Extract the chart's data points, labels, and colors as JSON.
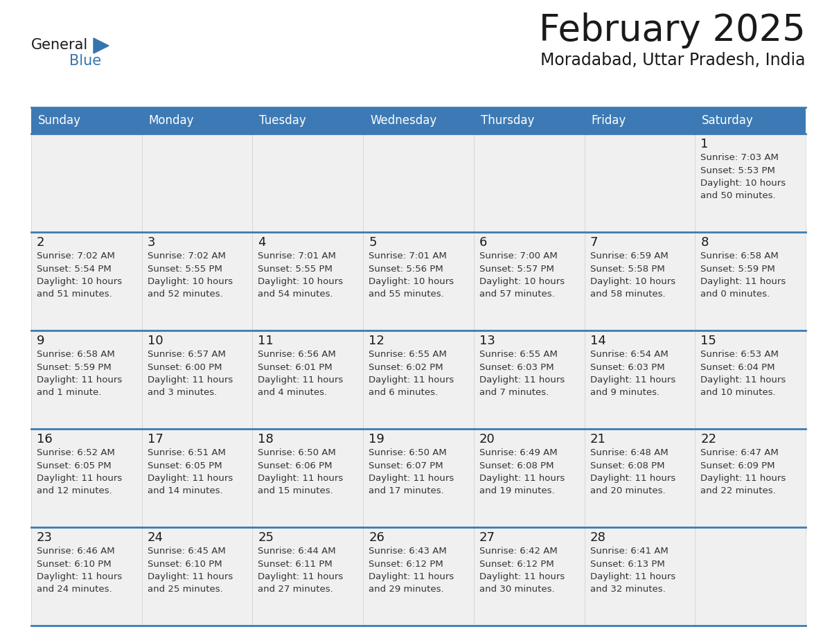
{
  "title": "February 2025",
  "subtitle": "Moradabad, Uttar Pradesh, India",
  "header_color": "#3d7ab5",
  "header_text_color": "#ffffff",
  "cell_bg_light": "#f0f0f0",
  "cell_bg_white": "#ffffff",
  "day_number_color": "#222222",
  "text_color": "#333333",
  "line_color": "#3d7ab5",
  "days_of_week": [
    "Sunday",
    "Monday",
    "Tuesday",
    "Wednesday",
    "Thursday",
    "Friday",
    "Saturday"
  ],
  "weeks": [
    [
      {
        "day": 0,
        "info": ""
      },
      {
        "day": 0,
        "info": ""
      },
      {
        "day": 0,
        "info": ""
      },
      {
        "day": 0,
        "info": ""
      },
      {
        "day": 0,
        "info": ""
      },
      {
        "day": 0,
        "info": ""
      },
      {
        "day": 1,
        "info": "Sunrise: 7:03 AM\nSunset: 5:53 PM\nDaylight: 10 hours\nand 50 minutes."
      }
    ],
    [
      {
        "day": 2,
        "info": "Sunrise: 7:02 AM\nSunset: 5:54 PM\nDaylight: 10 hours\nand 51 minutes."
      },
      {
        "day": 3,
        "info": "Sunrise: 7:02 AM\nSunset: 5:55 PM\nDaylight: 10 hours\nand 52 minutes."
      },
      {
        "day": 4,
        "info": "Sunrise: 7:01 AM\nSunset: 5:55 PM\nDaylight: 10 hours\nand 54 minutes."
      },
      {
        "day": 5,
        "info": "Sunrise: 7:01 AM\nSunset: 5:56 PM\nDaylight: 10 hours\nand 55 minutes."
      },
      {
        "day": 6,
        "info": "Sunrise: 7:00 AM\nSunset: 5:57 PM\nDaylight: 10 hours\nand 57 minutes."
      },
      {
        "day": 7,
        "info": "Sunrise: 6:59 AM\nSunset: 5:58 PM\nDaylight: 10 hours\nand 58 minutes."
      },
      {
        "day": 8,
        "info": "Sunrise: 6:58 AM\nSunset: 5:59 PM\nDaylight: 11 hours\nand 0 minutes."
      }
    ],
    [
      {
        "day": 9,
        "info": "Sunrise: 6:58 AM\nSunset: 5:59 PM\nDaylight: 11 hours\nand 1 minute."
      },
      {
        "day": 10,
        "info": "Sunrise: 6:57 AM\nSunset: 6:00 PM\nDaylight: 11 hours\nand 3 minutes."
      },
      {
        "day": 11,
        "info": "Sunrise: 6:56 AM\nSunset: 6:01 PM\nDaylight: 11 hours\nand 4 minutes."
      },
      {
        "day": 12,
        "info": "Sunrise: 6:55 AM\nSunset: 6:02 PM\nDaylight: 11 hours\nand 6 minutes."
      },
      {
        "day": 13,
        "info": "Sunrise: 6:55 AM\nSunset: 6:03 PM\nDaylight: 11 hours\nand 7 minutes."
      },
      {
        "day": 14,
        "info": "Sunrise: 6:54 AM\nSunset: 6:03 PM\nDaylight: 11 hours\nand 9 minutes."
      },
      {
        "day": 15,
        "info": "Sunrise: 6:53 AM\nSunset: 6:04 PM\nDaylight: 11 hours\nand 10 minutes."
      }
    ],
    [
      {
        "day": 16,
        "info": "Sunrise: 6:52 AM\nSunset: 6:05 PM\nDaylight: 11 hours\nand 12 minutes."
      },
      {
        "day": 17,
        "info": "Sunrise: 6:51 AM\nSunset: 6:05 PM\nDaylight: 11 hours\nand 14 minutes."
      },
      {
        "day": 18,
        "info": "Sunrise: 6:50 AM\nSunset: 6:06 PM\nDaylight: 11 hours\nand 15 minutes."
      },
      {
        "day": 19,
        "info": "Sunrise: 6:50 AM\nSunset: 6:07 PM\nDaylight: 11 hours\nand 17 minutes."
      },
      {
        "day": 20,
        "info": "Sunrise: 6:49 AM\nSunset: 6:08 PM\nDaylight: 11 hours\nand 19 minutes."
      },
      {
        "day": 21,
        "info": "Sunrise: 6:48 AM\nSunset: 6:08 PM\nDaylight: 11 hours\nand 20 minutes."
      },
      {
        "day": 22,
        "info": "Sunrise: 6:47 AM\nSunset: 6:09 PM\nDaylight: 11 hours\nand 22 minutes."
      }
    ],
    [
      {
        "day": 23,
        "info": "Sunrise: 6:46 AM\nSunset: 6:10 PM\nDaylight: 11 hours\nand 24 minutes."
      },
      {
        "day": 24,
        "info": "Sunrise: 6:45 AM\nSunset: 6:10 PM\nDaylight: 11 hours\nand 25 minutes."
      },
      {
        "day": 25,
        "info": "Sunrise: 6:44 AM\nSunset: 6:11 PM\nDaylight: 11 hours\nand 27 minutes."
      },
      {
        "day": 26,
        "info": "Sunrise: 6:43 AM\nSunset: 6:12 PM\nDaylight: 11 hours\nand 29 minutes."
      },
      {
        "day": 27,
        "info": "Sunrise: 6:42 AM\nSunset: 6:12 PM\nDaylight: 11 hours\nand 30 minutes."
      },
      {
        "day": 28,
        "info": "Sunrise: 6:41 AM\nSunset: 6:13 PM\nDaylight: 11 hours\nand 32 minutes."
      },
      {
        "day": 0,
        "info": ""
      }
    ]
  ],
  "logo_text_general": "General",
  "logo_text_blue": "Blue"
}
